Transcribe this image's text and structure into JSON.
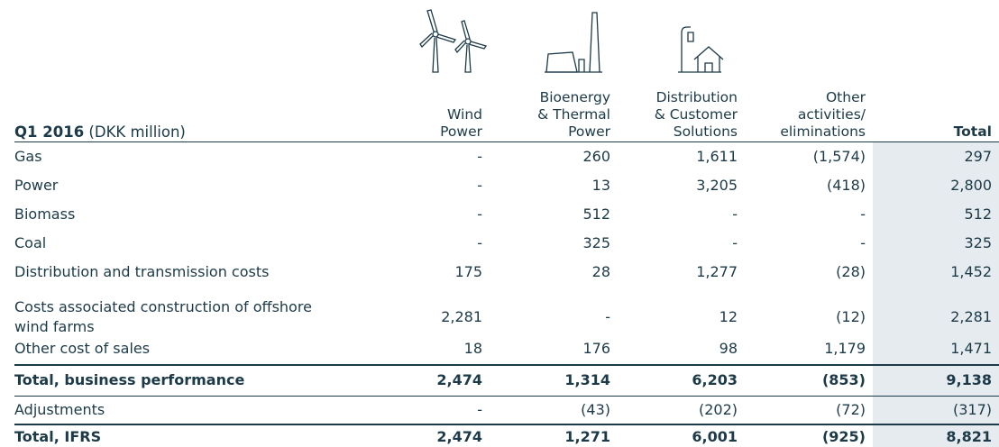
{
  "header": {
    "title": "Q1 2016",
    "unit": "(DKK million)"
  },
  "table": {
    "columns": [
      [
        "Wind",
        "Power"
      ],
      [
        "Bioenergy",
        "& Thermal",
        "Power"
      ],
      [
        "Distribution",
        "& Customer",
        "Solutions"
      ],
      [
        "Other",
        "activities/",
        "eliminations"
      ],
      [
        "Total"
      ]
    ],
    "rows": [
      [
        "Gas",
        "-",
        "260",
        "1,611",
        "(1,574)",
        "297"
      ],
      [
        "Power",
        "-",
        "13",
        "3,205",
        "(418)",
        "2,800"
      ],
      [
        "Biomass",
        "-",
        "512",
        "-",
        "-",
        "512"
      ],
      [
        "Coal",
        "-",
        "325",
        "-",
        "-",
        "325"
      ],
      [
        "Distribution and transmission costs",
        "175",
        "28",
        "1,277",
        "(28)",
        "1,452"
      ],
      [
        "Costs associated construction of offshore wind farms",
        "2,281",
        "-",
        "12",
        "(12)",
        "2,281"
      ],
      [
        "Other cost of sales",
        "18",
        "176",
        "98",
        "1,179",
        "1,471"
      ],
      [
        "Total, business performance",
        "2,474",
        "1,314",
        "6,203",
        "(853)",
        "9,138"
      ],
      [
        "Adjustments",
        "-",
        "(43)",
        "(202)",
        "(72)",
        "(317)"
      ],
      [
        "Total, IFRS",
        "2,474",
        "1,271",
        "6,001",
        "(925)",
        "8,821"
      ]
    ]
  }
}
